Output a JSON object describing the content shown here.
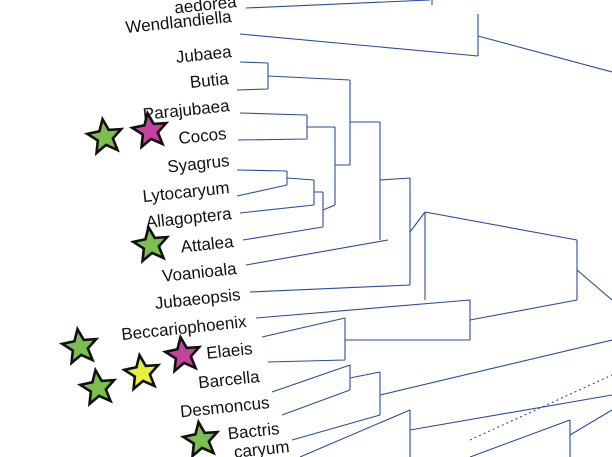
{
  "tree": {
    "taxa": [
      "aedorea",
      "Wendlandiella",
      "Jubaea",
      "Butia",
      "Parajubaea",
      "Cocos",
      "Syagrus",
      "Lytocaryum",
      "Allagoptera",
      "Attalea",
      "Voanioala",
      "Jubaeopsis",
      "Beccariophoenix",
      "Elaeis",
      "Barcella",
      "Desmoncus",
      "Bactris",
      "caryum"
    ]
  }
}
